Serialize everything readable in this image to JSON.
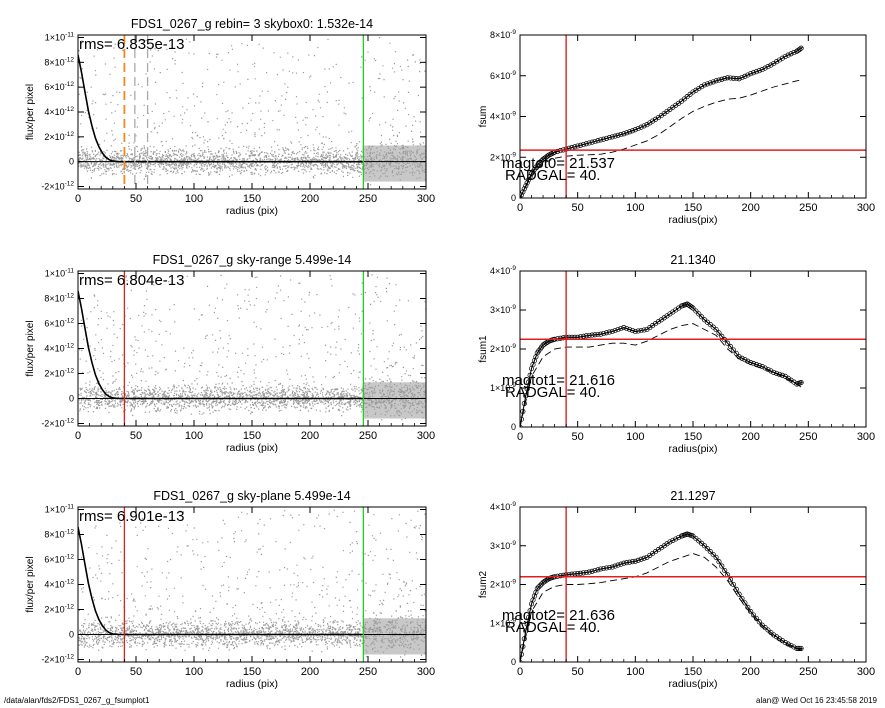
{
  "footer": {
    "path": "/data/alan/fds2/FDS1_0267_g_fsumplot1",
    "user_stamp": "alan@  Wed Oct 16 23:45:58 2019"
  },
  "colors": {
    "axis": "#000000",
    "profile": "#000000",
    "scatter": "#9a9a9a",
    "background_line": "#000000",
    "red_marker": "#e02020",
    "green_marker": "#22cc22",
    "orange_marker": "#f08a1c",
    "gray_marker": "#aaaaaa"
  },
  "chart_data": [
    {
      "id": "left-1",
      "type": "scatter",
      "title": "FDS1_0267_g rebin= 3    skybox0:  1.532e-14",
      "xlabel": "radius (pix)",
      "ylabel": "flux/per pixel",
      "xlim": [
        0,
        300
      ],
      "ylim": [
        -2.2e-12,
        1.02e-11
      ],
      "xticks": [
        "0",
        "50",
        "100",
        "150",
        "200",
        "250",
        "300"
      ],
      "yticks": [
        {
          "v": -2e-12,
          "m": "-2",
          "e": "-12"
        },
        {
          "v": 0,
          "m": "0",
          "e": ""
        },
        {
          "v": 2e-12,
          "m": "2",
          "e": "-12"
        },
        {
          "v": 4e-12,
          "m": "4",
          "e": "-12"
        },
        {
          "v": 6e-12,
          "m": "6",
          "e": "-12"
        },
        {
          "v": 8e-12,
          "m": "8",
          "e": "-12"
        },
        {
          "v": 1e-11,
          "m": "1",
          "e": "-11",
          "prefix": "1×10"
        }
      ],
      "annotation": "rms= 6.835e-13",
      "profile_x": [
        0,
        3,
        6,
        9,
        12,
        15,
        18,
        21,
        24,
        27,
        30,
        35,
        40,
        50,
        60,
        80,
        100,
        150,
        200,
        246
      ],
      "profile_y": [
        8.6e-12,
        7.2e-12,
        5.6e-12,
        4.1e-12,
        2.9e-12,
        1.9e-12,
        1.2e-12,
        7e-13,
        3.5e-13,
        1.5e-13,
        5e-14,
        1e-14,
        0,
        0,
        0,
        0,
        0,
        0,
        0,
        0
      ],
      "vlines": [
        {
          "x": 246,
          "color": "green",
          "dash": false
        },
        {
          "x": 40,
          "color": "orange",
          "dash": true
        },
        {
          "x": 49,
          "color": "gray",
          "dash": true
        },
        {
          "x": 60,
          "color": "gray",
          "dash": true
        }
      ]
    },
    {
      "id": "right-1",
      "type": "line",
      "title": "",
      "xlabel": "radius(pix)",
      "ylabel": "fsum",
      "xlim": [
        0,
        300
      ],
      "ylim": [
        0,
        8e-09
      ],
      "xticks": [
        "0",
        "50",
        "100",
        "150",
        "200",
        "250",
        "300"
      ],
      "yticks": [
        {
          "v": 0,
          "m": "0",
          "e": ""
        },
        {
          "v": 2e-09,
          "m": "2",
          "e": "-9",
          "prefix": "2×10"
        },
        {
          "v": 4e-09,
          "m": "4",
          "e": "-9",
          "prefix": "4×10"
        },
        {
          "v": 6e-09,
          "m": "6",
          "e": "-9",
          "prefix": "6×10"
        },
        {
          "v": 8e-09,
          "m": "8",
          "e": "-9",
          "prefix": "8×10"
        }
      ],
      "annotations": [
        "magtot0=  21.537",
        "RADGAL=     40."
      ],
      "series": [
        {
          "style": "circles",
          "x": [
            0,
            5,
            10,
            15,
            20,
            25,
            30,
            40,
            50,
            60,
            70,
            80,
            90,
            100,
            110,
            120,
            130,
            140,
            150,
            160,
            170,
            180,
            190,
            200,
            210,
            220,
            230,
            240,
            245
          ],
          "y": [
            0,
            6e-10,
            1.2e-09,
            1.6e-09,
            1.9e-09,
            2.1e-09,
            2.25e-09,
            2.4e-09,
            2.55e-09,
            2.7e-09,
            2.85e-09,
            3e-09,
            3.15e-09,
            3.35e-09,
            3.6e-09,
            3.95e-09,
            4.35e-09,
            4.75e-09,
            5.2e-09,
            5.55e-09,
            5.75e-09,
            5.9e-09,
            5.85e-09,
            6.1e-09,
            6.3e-09,
            6.6e-09,
            6.95e-09,
            7.2e-09,
            7.4e-09
          ]
        },
        {
          "style": "dashed",
          "x": [
            0,
            10,
            20,
            30,
            40,
            50,
            60,
            70,
            80,
            90,
            100,
            110,
            120,
            130,
            140,
            150,
            160,
            170,
            180,
            190,
            200,
            210,
            220,
            230,
            240,
            245
          ],
          "y": [
            0,
            1.1e-09,
            1.7e-09,
            1.95e-09,
            2.05e-09,
            2.1e-09,
            2.12e-09,
            2.15e-09,
            2.25e-09,
            2.4e-09,
            2.6e-09,
            2.8e-09,
            3.1e-09,
            3.5e-09,
            3.9e-09,
            4.25e-09,
            4.5e-09,
            4.7e-09,
            4.85e-09,
            4.9e-09,
            5.05e-09,
            5.25e-09,
            5.45e-09,
            5.6e-09,
            5.75e-09,
            5.8e-09
          ]
        }
      ],
      "vline": 40,
      "hline": 2.35e-09
    },
    {
      "id": "left-2",
      "type": "scatter",
      "title": "FDS1_0267_g sky-range  5.499e-14",
      "xlabel": "radius (pix)",
      "ylabel": "flux/per pixel",
      "xlim": [
        0,
        300
      ],
      "ylim": [
        -2.2e-12,
        1.02e-11
      ],
      "xticks": [
        "0",
        "50",
        "100",
        "150",
        "200",
        "250",
        "300"
      ],
      "yticks": [
        {
          "v": -2e-12,
          "m": "-2",
          "e": "-12"
        },
        {
          "v": 0,
          "m": "0",
          "e": ""
        },
        {
          "v": 2e-12,
          "m": "2",
          "e": "-12"
        },
        {
          "v": 4e-12,
          "m": "4",
          "e": "-12"
        },
        {
          "v": 6e-12,
          "m": "6",
          "e": "-12"
        },
        {
          "v": 8e-12,
          "m": "8",
          "e": "-12"
        },
        {
          "v": 1e-11,
          "m": "1",
          "e": "-11",
          "prefix": "1×10"
        }
      ],
      "annotation": "rms= 6.804e-13",
      "profile_x": [
        0,
        3,
        6,
        9,
        12,
        15,
        18,
        21,
        24,
        27,
        30,
        35,
        40,
        50,
        60,
        80,
        100,
        150,
        200,
        246
      ],
      "profile_y": [
        8.6e-12,
        7.2e-12,
        5.6e-12,
        4.1e-12,
        2.9e-12,
        1.9e-12,
        1.2e-12,
        7e-13,
        3.5e-13,
        1.5e-13,
        5e-14,
        1e-14,
        0,
        0,
        0,
        0,
        0,
        0,
        0,
        0
      ],
      "vlines": [
        {
          "x": 246,
          "color": "green",
          "dash": false
        },
        {
          "x": 40,
          "color": "red",
          "dash": false
        }
      ]
    },
    {
      "id": "right-2",
      "type": "line",
      "title": "21.1340",
      "xlabel": "radius(pix)",
      "ylabel": "fsum1",
      "xlim": [
        0,
        300
      ],
      "ylim": [
        0,
        4e-09
      ],
      "xticks": [
        "0",
        "50",
        "100",
        "150",
        "200",
        "250",
        "300"
      ],
      "yticks": [
        {
          "v": 0,
          "m": "0",
          "e": ""
        },
        {
          "v": 1e-09,
          "m": "1",
          "e": "-9",
          "prefix": "1×10"
        },
        {
          "v": 2e-09,
          "m": "2",
          "e": "-9",
          "prefix": "2×10"
        },
        {
          "v": 3e-09,
          "m": "3",
          "e": "-9",
          "prefix": "3×10"
        },
        {
          "v": 4e-09,
          "m": "4",
          "e": "-9",
          "prefix": "4×10"
        }
      ],
      "annotations": [
        "magtot1=  21.616",
        "RADGAL=     40."
      ],
      "series": [
        {
          "style": "circles",
          "x": [
            0,
            5,
            10,
            15,
            20,
            25,
            30,
            40,
            50,
            60,
            70,
            80,
            90,
            100,
            110,
            120,
            130,
            140,
            145,
            150,
            160,
            170,
            180,
            190,
            200,
            210,
            220,
            230,
            240,
            245
          ],
          "y": [
            0,
            8e-10,
            1.5e-09,
            1.9e-09,
            2.1e-09,
            2.2e-09,
            2.25e-09,
            2.3e-09,
            2.3e-09,
            2.35e-09,
            2.38e-09,
            2.45e-09,
            2.55e-09,
            2.45e-09,
            2.5e-09,
            2.7e-09,
            2.9e-09,
            3.1e-09,
            3.15e-09,
            3.05e-09,
            2.75e-09,
            2.5e-09,
            2.15e-09,
            1.8e-09,
            1.65e-09,
            1.55e-09,
            1.4e-09,
            1.3e-09,
            1.1e-09,
            1.15e-09
          ]
        },
        {
          "style": "dashed",
          "x": [
            0,
            10,
            20,
            30,
            40,
            50,
            60,
            70,
            80,
            90,
            100,
            110,
            120,
            130,
            140,
            150,
            160,
            170,
            180,
            190,
            200,
            210,
            220,
            230,
            240,
            245
          ],
          "y": [
            0,
            1.3e-09,
            1.8e-09,
            2e-09,
            2.05e-09,
            2.05e-09,
            2.05e-09,
            2.1e-09,
            2.15e-09,
            2.15e-09,
            2.1e-09,
            2.2e-09,
            2.35e-09,
            2.5e-09,
            2.6e-09,
            2.65e-09,
            2.5e-09,
            2.35e-09,
            2e-09,
            1.75e-09,
            1.6e-09,
            1.5e-09,
            1.4e-09,
            1.25e-09,
            1.1e-09,
            1e-09
          ]
        }
      ],
      "vline": 40,
      "hline": 2.25e-09
    },
    {
      "id": "left-3",
      "type": "scatter",
      "title": "FDS1_0267_g sky-plane  5.499e-14",
      "xlabel": "radius (pix)",
      "ylabel": "flux/per pixel",
      "xlim": [
        0,
        300
      ],
      "ylim": [
        -2.2e-12,
        1.02e-11
      ],
      "xticks": [
        "0",
        "50",
        "100",
        "150",
        "200",
        "250",
        "300"
      ],
      "yticks": [
        {
          "v": -2e-12,
          "m": "-2",
          "e": "-12"
        },
        {
          "v": 0,
          "m": "0",
          "e": ""
        },
        {
          "v": 2e-12,
          "m": "2",
          "e": "-12"
        },
        {
          "v": 4e-12,
          "m": "4",
          "e": "-12"
        },
        {
          "v": 6e-12,
          "m": "6",
          "e": "-12"
        },
        {
          "v": 8e-12,
          "m": "8",
          "e": "-12"
        },
        {
          "v": 1e-11,
          "m": "1",
          "e": "-11",
          "prefix": "1×10"
        }
      ],
      "annotation": "rms= 6.901e-13",
      "profile_x": [
        0,
        3,
        6,
        9,
        12,
        15,
        18,
        21,
        24,
        27,
        30,
        35,
        40,
        50,
        60,
        80,
        100,
        150,
        200,
        246
      ],
      "profile_y": [
        8.6e-12,
        7.2e-12,
        5.6e-12,
        4.1e-12,
        2.9e-12,
        1.9e-12,
        1.2e-12,
        7e-13,
        3.5e-13,
        1.5e-13,
        5e-14,
        1e-14,
        0,
        0,
        0,
        0,
        0,
        0,
        0,
        0
      ],
      "vlines": [
        {
          "x": 246,
          "color": "green",
          "dash": false
        },
        {
          "x": 40,
          "color": "red",
          "dash": false
        }
      ]
    },
    {
      "id": "right-3",
      "type": "line",
      "title": "21.1297",
      "xlabel": "radius(pix)",
      "ylabel": "fsum2",
      "xlim": [
        0,
        300
      ],
      "ylim": [
        0,
        4e-09
      ],
      "xticks": [
        "0",
        "50",
        "100",
        "150",
        "200",
        "250",
        "300"
      ],
      "yticks": [
        {
          "v": 0,
          "m": "0",
          "e": ""
        },
        {
          "v": 1e-09,
          "m": "1",
          "e": "-9",
          "prefix": "1×10"
        },
        {
          "v": 2e-09,
          "m": "2",
          "e": "-9",
          "prefix": "2×10"
        },
        {
          "v": 3e-09,
          "m": "3",
          "e": "-9",
          "prefix": "3×10"
        },
        {
          "v": 4e-09,
          "m": "4",
          "e": "-9",
          "prefix": "4×10"
        }
      ],
      "annotations": [
        "magtot2=  21.636",
        "RADGAL=     40."
      ],
      "series": [
        {
          "style": "circles",
          "x": [
            0,
            5,
            10,
            15,
            20,
            25,
            30,
            40,
            50,
            60,
            70,
            80,
            90,
            100,
            110,
            120,
            130,
            140,
            145,
            150,
            160,
            170,
            180,
            190,
            200,
            210,
            220,
            230,
            240,
            245
          ],
          "y": [
            0,
            8e-10,
            1.5e-09,
            1.9e-09,
            2.05e-09,
            2.15e-09,
            2.2e-09,
            2.25e-09,
            2.28e-09,
            2.32e-09,
            2.4e-09,
            2.45e-09,
            2.55e-09,
            2.6e-09,
            2.7e-09,
            2.9e-09,
            3.1e-09,
            3.25e-09,
            3.3e-09,
            3.25e-09,
            3e-09,
            2.7e-09,
            2.25e-09,
            1.75e-09,
            1.3e-09,
            9.5e-10,
            7e-10,
            5e-10,
            3.5e-10,
            3.5e-10
          ]
        },
        {
          "style": "dashed",
          "x": [
            0,
            10,
            20,
            30,
            40,
            50,
            60,
            70,
            80,
            90,
            100,
            110,
            120,
            130,
            140,
            150,
            160,
            170,
            180,
            190,
            200,
            210,
            220,
            230,
            240,
            245
          ],
          "y": [
            0,
            1.3e-09,
            1.8e-09,
            1.95e-09,
            2e-09,
            2e-09,
            2.02e-09,
            2.05e-09,
            2.1e-09,
            2.15e-09,
            2.2e-09,
            2.3e-09,
            2.45e-09,
            2.6e-09,
            2.7e-09,
            2.8e-09,
            2.7e-09,
            2.45e-09,
            2.1e-09,
            1.65e-09,
            1.25e-09,
            9e-10,
            6.5e-10,
            4.5e-10,
            3.5e-10,
            3e-10
          ]
        }
      ],
      "vline": 40,
      "hline": 2.2e-09
    }
  ]
}
